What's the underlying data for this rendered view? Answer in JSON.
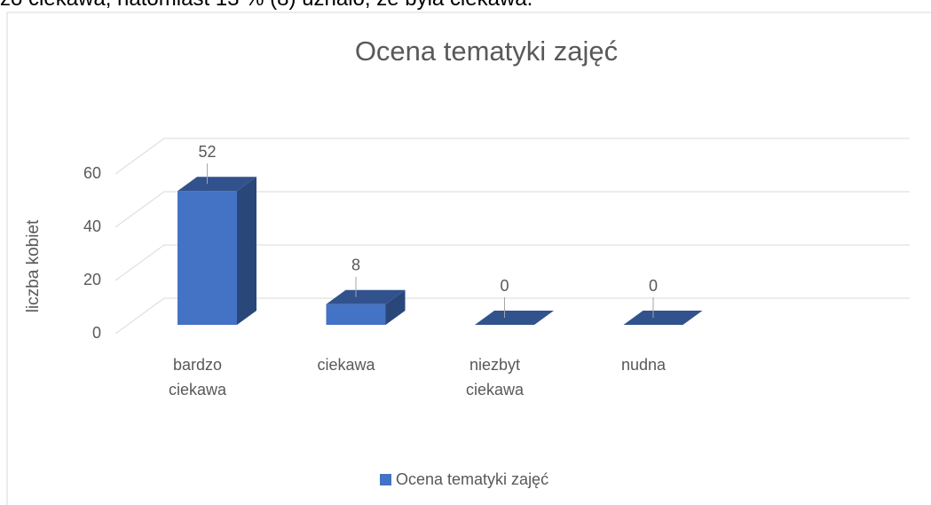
{
  "caption": "zo ciekawa, natomiast 13 % (8) uznało, że była ciekawa.",
  "chart_data": {
    "type": "bar3d",
    "title": "Ocena tematyki zajęć",
    "y_label": "liczba kobiet",
    "categories": [
      "bardzo ciekawa",
      "ciekawa",
      "niezbyt ciekawa",
      "nudna"
    ],
    "series": [
      {
        "name": "Ocena tematyki zajęć",
        "color": "#4472c4",
        "values": [
          52,
          8,
          0,
          0
        ]
      }
    ],
    "ylim": [
      0,
      60
    ],
    "yticks": [
      0,
      20,
      40,
      60
    ],
    "grid": true,
    "legend": "bottom"
  }
}
